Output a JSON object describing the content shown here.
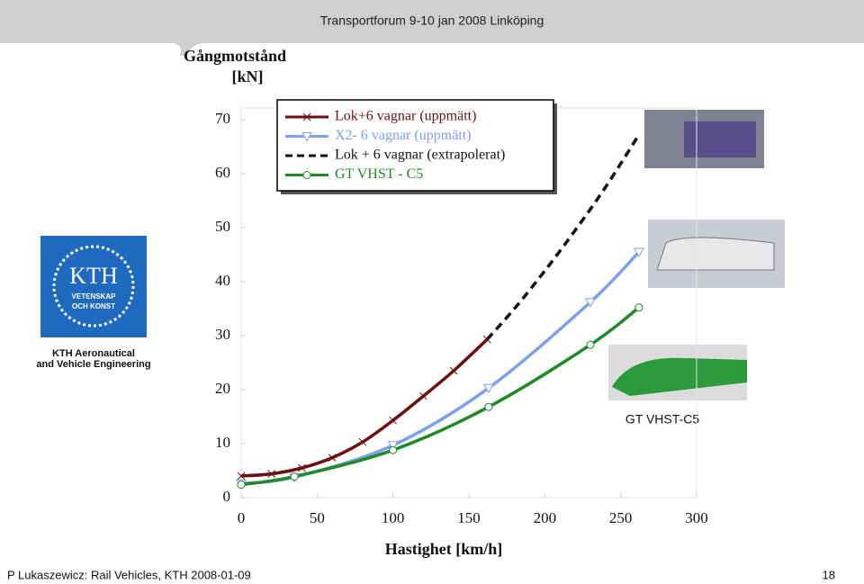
{
  "header": "Transportforum 9-10 jan 2008 Linköping",
  "logo": {
    "text": "KTH",
    "motto_1": "VETENSKAP",
    "motto_2": "OCH KONST",
    "caption_1": "KTH Aeronautical",
    "caption_2": "and Vehicle Engineering"
  },
  "photo_caption": "GT VHST-C5",
  "footer": {
    "left": "P Lukaszewicz: Rail Vehicles, KTH 2008-01-09",
    "page": "18"
  },
  "chart_data": {
    "type": "line",
    "y_label_1": "Gångmotstånd",
    "y_label_2": "[kN]",
    "x_label": "Hastighet [km/h]",
    "xlim": [
      0,
      300
    ],
    "ylim": [
      0,
      70
    ],
    "xticks": [
      0,
      50,
      100,
      150,
      200,
      250,
      300
    ],
    "yticks": [
      0,
      10,
      20,
      30,
      40,
      50,
      60,
      70
    ],
    "series": [
      {
        "name": "Lok+6 vagnar (uppmätt)",
        "color": "#6b0f12",
        "marker": "x",
        "dashed": false,
        "x": [
          0,
          20,
          40,
          60,
          80,
          100,
          120,
          140,
          162
        ],
        "values": [
          4,
          4.4,
          5.5,
          7.4,
          10.3,
          14.3,
          18.8,
          23.5,
          29.3
        ]
      },
      {
        "name": "X2- 6 vagnar (uppmätt)",
        "color": "#7ea0ec",
        "marker": "triangle",
        "dashed": false,
        "x": [
          0,
          35,
          100,
          163,
          230,
          262
        ],
        "values": [
          2.6,
          3.8,
          9.7,
          20.3,
          36.2,
          45.5
        ]
      },
      {
        "name": "Lok + 6 vagnar  (extrapolerat)",
        "color": "#111111",
        "marker": "none",
        "dashed": true,
        "x": [
          162,
          180,
          200,
          220,
          240,
          262
        ],
        "values": [
          29.3,
          35,
          42,
          49.5,
          57.5,
          67.2
        ]
      },
      {
        "name": "GT VHST - C5",
        "color": "#1f8a25",
        "marker": "circle",
        "dashed": false,
        "x": [
          0,
          35,
          100,
          163,
          230,
          262
        ],
        "values": [
          2.4,
          3.9,
          8.8,
          16.8,
          28.3,
          35.2
        ]
      }
    ]
  }
}
